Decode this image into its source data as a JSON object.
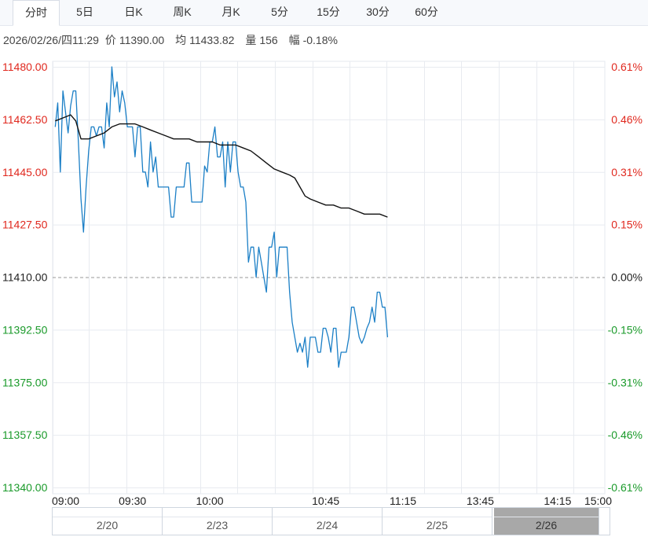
{
  "tabs": [
    {
      "label": "分时",
      "active": true
    },
    {
      "label": "5日",
      "active": false
    },
    {
      "label": "日K",
      "active": false
    },
    {
      "label": "周K",
      "active": false
    },
    {
      "label": "月K",
      "active": false
    },
    {
      "label": "5分",
      "active": false
    },
    {
      "label": "15分",
      "active": false
    },
    {
      "label": "30分",
      "active": false
    },
    {
      "label": "60分",
      "active": false
    }
  ],
  "info": {
    "datetime": "2026/02/26/四11:29",
    "price_label": "价",
    "price": "11390.00",
    "avg_label": "均",
    "avg": "11433.82",
    "volume_label": "量",
    "volume": "156",
    "change_label": "幅",
    "change": "-0.18%"
  },
  "colors": {
    "up": "#e0281e",
    "down": "#1a9a2a",
    "price_line": "#1b7fc6",
    "avg_line": "#111111",
    "grid": "#e8ebf0",
    "baseline": "#999999"
  },
  "chart_data": {
    "type": "line",
    "title": "",
    "reference_price": 11410.0,
    "ylim": [
      11340.0,
      11480.0
    ],
    "y_ticks": [
      {
        "value": 11480.0,
        "label": "11480.00",
        "pct": "0.61%"
      },
      {
        "value": 11462.5,
        "label": "11462.50",
        "pct": "0.46%"
      },
      {
        "value": 11445.0,
        "label": "11445.00",
        "pct": "0.31%"
      },
      {
        "value": 11427.5,
        "label": "11427.50",
        "pct": "0.15%"
      },
      {
        "value": 11410.0,
        "label": "11410.00",
        "pct": "0.00%"
      },
      {
        "value": 11392.5,
        "label": "11392.50",
        "pct": "-0.15%"
      },
      {
        "value": 11375.0,
        "label": "11375.00",
        "pct": "-0.31%"
      },
      {
        "value": 11357.5,
        "label": "11357.50",
        "pct": "-0.46%"
      },
      {
        "value": 11340.0,
        "label": "11340.00",
        "pct": "-0.61%"
      }
    ],
    "x_ticks": [
      {
        "minute": 0,
        "label": "09:00"
      },
      {
        "minute": 30,
        "label": "09:30"
      },
      {
        "minute": 60,
        "label": "10:00"
      },
      {
        "minute": 105,
        "label": "10:45"
      },
      {
        "minute": 135,
        "label": "11:15"
      },
      {
        "minute": 165,
        "label": "13:45"
      },
      {
        "minute": 195,
        "label": "14:15"
      },
      {
        "minute": 225,
        "label": "15:00"
      }
    ],
    "series": [
      {
        "role": "price",
        "points": [
          [
            0,
            11460
          ],
          [
            1,
            11468
          ],
          [
            2,
            11445
          ],
          [
            3,
            11472
          ],
          [
            4,
            11465
          ],
          [
            5,
            11458
          ],
          [
            6,
            11467
          ],
          [
            7,
            11472
          ],
          [
            8,
            11472
          ],
          [
            9,
            11455
          ],
          [
            10,
            11436
          ],
          [
            11,
            11425
          ],
          [
            12,
            11440
          ],
          [
            13,
            11452
          ],
          [
            14,
            11460
          ],
          [
            15,
            11460
          ],
          [
            16,
            11457
          ],
          [
            17,
            11460
          ],
          [
            18,
            11460
          ],
          [
            19,
            11453
          ],
          [
            20,
            11468
          ],
          [
            21,
            11460
          ],
          [
            22,
            11480
          ],
          [
            23,
            11470
          ],
          [
            24,
            11475
          ],
          [
            25,
            11465
          ],
          [
            26,
            11472
          ],
          [
            27,
            11468
          ],
          [
            28,
            11460
          ],
          [
            29,
            11460
          ],
          [
            30,
            11460
          ],
          [
            31,
            11450
          ],
          [
            32,
            11460
          ],
          [
            33,
            11460
          ],
          [
            34,
            11445
          ],
          [
            35,
            11445
          ],
          [
            36,
            11440
          ],
          [
            37,
            11455
          ],
          [
            38,
            11445
          ],
          [
            39,
            11450
          ],
          [
            40,
            11440
          ],
          [
            41,
            11440
          ],
          [
            42,
            11440
          ],
          [
            43,
            11440
          ],
          [
            44,
            11440
          ],
          [
            45,
            11430
          ],
          [
            46,
            11430
          ],
          [
            47,
            11440
          ],
          [
            48,
            11440
          ],
          [
            49,
            11440
          ],
          [
            50,
            11440
          ],
          [
            51,
            11448
          ],
          [
            52,
            11448
          ],
          [
            53,
            11435
          ],
          [
            54,
            11435
          ],
          [
            55,
            11435
          ],
          [
            56,
            11435
          ],
          [
            57,
            11435
          ],
          [
            58,
            11447
          ],
          [
            59,
            11445
          ],
          [
            60,
            11455
          ],
          [
            61,
            11455
          ],
          [
            62,
            11460
          ],
          [
            63,
            11450
          ],
          [
            64,
            11450
          ],
          [
            65,
            11455
          ],
          [
            66,
            11440
          ],
          [
            67,
            11455
          ],
          [
            68,
            11445
          ],
          [
            69,
            11455
          ],
          [
            70,
            11455
          ],
          [
            71,
            11445
          ],
          [
            72,
            11440
          ],
          [
            73,
            11440
          ],
          [
            74,
            11435
          ],
          [
            75,
            11415
          ],
          [
            76,
            11420
          ],
          [
            77,
            11420
          ],
          [
            78,
            11410
          ],
          [
            79,
            11420
          ],
          [
            80,
            11415
          ],
          [
            81,
            11410
          ],
          [
            82,
            11405
          ],
          [
            83,
            11420
          ],
          [
            84,
            11420
          ],
          [
            85,
            11425
          ],
          [
            86,
            11410
          ],
          [
            87,
            11420
          ],
          [
            88,
            11420
          ],
          [
            89,
            11420
          ],
          [
            90,
            11420
          ],
          [
            91,
            11405
          ],
          [
            92,
            11395
          ],
          [
            93,
            11390
          ],
          [
            94,
            11385
          ],
          [
            95,
            11388
          ],
          [
            96,
            11385
          ],
          [
            97,
            11390
          ],
          [
            98,
            11380
          ],
          [
            99,
            11390
          ],
          [
            100,
            11390
          ],
          [
            101,
            11390
          ],
          [
            102,
            11385
          ],
          [
            103,
            11385
          ],
          [
            104,
            11393
          ],
          [
            105,
            11393
          ],
          [
            106,
            11390
          ],
          [
            107,
            11385
          ],
          [
            108,
            11393
          ],
          [
            109,
            11393
          ],
          [
            110,
            11380
          ],
          [
            111,
            11385
          ],
          [
            112,
            11385
          ],
          [
            113,
            11385
          ],
          [
            114,
            11390
          ],
          [
            115,
            11400
          ],
          [
            116,
            11400
          ],
          [
            117,
            11395
          ],
          [
            118,
            11390
          ],
          [
            119,
            11388
          ],
          [
            120,
            11390
          ],
          [
            121,
            11393
          ],
          [
            122,
            11395
          ],
          [
            123,
            11400
          ],
          [
            124,
            11395
          ],
          [
            125,
            11405
          ],
          [
            126,
            11405
          ],
          [
            127,
            11400
          ],
          [
            128,
            11400
          ],
          [
            129,
            11390
          ]
        ]
      },
      {
        "role": "average",
        "points": [
          [
            0,
            11462
          ],
          [
            3,
            11463
          ],
          [
            6,
            11464
          ],
          [
            8,
            11462
          ],
          [
            10,
            11456
          ],
          [
            13,
            11456
          ],
          [
            16,
            11457
          ],
          [
            19,
            11458
          ],
          [
            22,
            11460
          ],
          [
            25,
            11461
          ],
          [
            28,
            11461
          ],
          [
            31,
            11461
          ],
          [
            34,
            11460
          ],
          [
            37,
            11459
          ],
          [
            40,
            11458
          ],
          [
            43,
            11457
          ],
          [
            46,
            11456
          ],
          [
            49,
            11456
          ],
          [
            52,
            11456
          ],
          [
            55,
            11455
          ],
          [
            58,
            11455
          ],
          [
            61,
            11455
          ],
          [
            64,
            11454
          ],
          [
            67,
            11454
          ],
          [
            70,
            11454
          ],
          [
            73,
            11453
          ],
          [
            76,
            11452
          ],
          [
            79,
            11450
          ],
          [
            82,
            11448
          ],
          [
            85,
            11446
          ],
          [
            88,
            11445
          ],
          [
            91,
            11444
          ],
          [
            93,
            11443
          ],
          [
            95,
            11440
          ],
          [
            97,
            11437
          ],
          [
            99,
            11436
          ],
          [
            102,
            11435
          ],
          [
            105,
            11434
          ],
          [
            108,
            11434
          ],
          [
            111,
            11433
          ],
          [
            114,
            11433
          ],
          [
            117,
            11432
          ],
          [
            120,
            11431
          ],
          [
            123,
            11431
          ],
          [
            126,
            11431
          ],
          [
            129,
            11430
          ]
        ]
      }
    ],
    "navigator": [
      "2/20",
      "2/23",
      "2/24",
      "2/25",
      "2/26"
    ],
    "navigator_selected": "2/26"
  }
}
